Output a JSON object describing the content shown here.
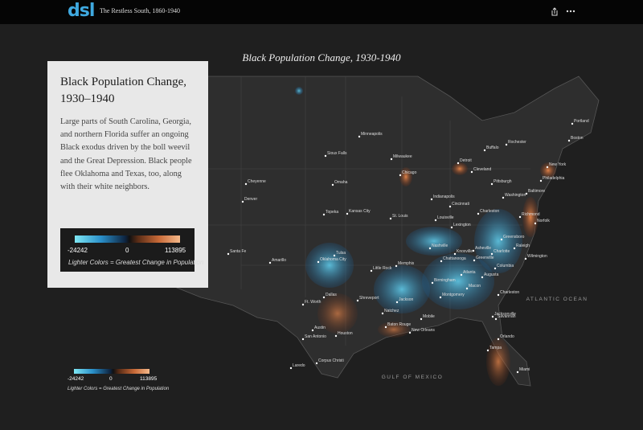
{
  "header": {
    "logo": "dsl",
    "title": "The Restless South, 1860-1940"
  },
  "map_title": "Black Population Change, 1930-1940",
  "panel": {
    "title": "Black Population Change, 1930–1940",
    "body": "Large parts of South Carolina, Georgia, and northern Florida suffer an ongoing Black exodus driven by the boll weevil and the Great Depression. Black people flee Oklahoma and Texas, too, along with their white neighbors.",
    "legend": {
      "min": "-24242",
      "mid": "0",
      "max": "113895",
      "note": "Lighter Colors = Greatest Change in Population"
    }
  },
  "map_legend": {
    "min": "-24242",
    "mid": "0",
    "max": "113895",
    "note": "Lighter Colors = Greatest Change in Population"
  },
  "water_labels": [
    "ATLANTIC OCEAN",
    "GULF OF MEXICO"
  ],
  "cities": [
    "Minneapolis",
    "Portland",
    "Boston",
    "Rochester",
    "Buffalo",
    "Detroit",
    "Milwaukee",
    "Chicago",
    "Cleveland",
    "New York",
    "Pittsburgh",
    "Philadelphia",
    "Baltimore",
    "Washington",
    "Richmond",
    "Norfolk",
    "Sioux Falls",
    "Omaha",
    "Cheyenne",
    "Denver",
    "Topeka",
    "Kansas City",
    "Indianapolis",
    "Cincinnati",
    "Charleston",
    "Louisville",
    "Lexington",
    "St. Louis",
    "Santa Fe",
    "Amarillo",
    "Oklahoma City",
    "Tulsa",
    "Little Rock",
    "Memphis",
    "Nashville",
    "Knoxville",
    "Asheville",
    "Greensboro",
    "Raleigh",
    "Wilmington",
    "Charlotte",
    "Chattanooga",
    "Greenville",
    "Columbia",
    "Atlanta",
    "Birmingham",
    "Augusta",
    "Charleston",
    "Savannah",
    "Macon",
    "Montgomery",
    "Jackson",
    "Shreveport",
    "Dallas",
    "Ft. Worth",
    "Natchez",
    "Mobile",
    "Baton Rouge",
    "New Orleans",
    "Jacksonville",
    "Orlando",
    "Tampa",
    "Miami",
    "Austin",
    "Houston",
    "San Antonio",
    "Laredo",
    "Corpus Christi"
  ]
}
